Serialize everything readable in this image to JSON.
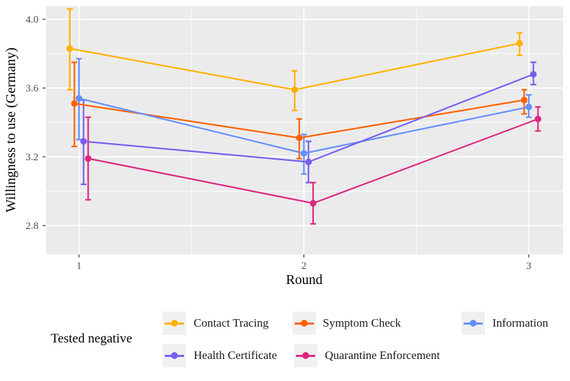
{
  "chart_data": {
    "type": "line",
    "title": "",
    "xlabel": "Round",
    "ylabel": "Willingness to use (Germany)",
    "legend_title": "Tested negative",
    "legend_position": "bottom",
    "grid": "on",
    "panel_bg": "#EBEBEB",
    "grid_color": "#FFFFFF",
    "tick_color": "#333333",
    "tick_label_color": "#4D4D4D",
    "legend_key_bg": "#F0F0F0",
    "x": [
      1,
      2,
      3
    ],
    "x_tick_labels": [
      "1",
      "2",
      "3"
    ],
    "y_ticks": [
      2.8,
      3.2,
      3.6,
      4.0
    ],
    "y_tick_labels": [
      "2.8",
      "3.2",
      "3.6",
      "4.0"
    ],
    "y_minor_ticks": [
      3.0,
      3.4,
      3.8
    ],
    "x_minor_ticks": [
      1.5,
      2.5
    ],
    "ylim": [
      2.63,
      4.08
    ],
    "xlim": [
      0.84,
      3.16
    ],
    "series": [
      {
        "name": "Contact Tracing",
        "color": "#FFB000",
        "values": [
          3.83,
          3.59,
          3.86
        ],
        "ci_low": [
          3.59,
          3.47,
          3.79
        ],
        "ci_high": [
          4.06,
          3.7,
          3.92
        ]
      },
      {
        "name": "Symptom Check",
        "color": "#FE6100",
        "values": [
          3.51,
          3.31,
          3.53
        ],
        "ci_low": [
          3.26,
          3.19,
          3.45
        ],
        "ci_high": [
          3.75,
          3.42,
          3.59
        ]
      },
      {
        "name": "Information",
        "color": "#648FFF",
        "values": [
          3.54,
          3.22,
          3.49
        ],
        "ci_low": [
          3.3,
          3.1,
          3.43
        ],
        "ci_high": [
          3.77,
          3.33,
          3.56
        ]
      },
      {
        "name": "Health Certificate",
        "color": "#785EF0",
        "values": [
          3.29,
          3.17,
          3.68
        ],
        "ci_low": [
          3.04,
          3.05,
          3.62
        ],
        "ci_high": [
          3.53,
          3.29,
          3.75
        ]
      },
      {
        "name": "Quarantine Enforcement",
        "color": "#DC267F",
        "values": [
          3.19,
          2.93,
          3.42
        ],
        "ci_low": [
          2.95,
          2.81,
          3.35
        ],
        "ci_high": [
          3.43,
          3.05,
          3.49
        ]
      }
    ]
  }
}
